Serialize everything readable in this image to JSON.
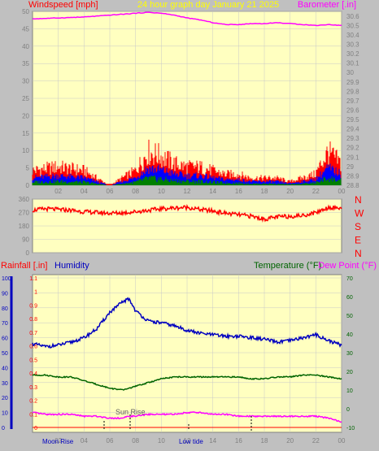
{
  "colors": {
    "background": "#c0c0c0",
    "plot_area": "#ffffc0",
    "grid": "#c8c8c8",
    "windspeed": "#ff0000",
    "wind_mid": "#0000ff",
    "wind_low": "#008000",
    "barometer": "#ff00ff",
    "direction": "#ff0000",
    "humidity": "#0000c0",
    "temperature": "#006400",
    "dewpoint": "#ff00ff",
    "rainfall": "#ff0000",
    "title": "#ffff00",
    "tick_text": "#808080"
  },
  "labels": {
    "windspeed": "Windspeed [mph]",
    "title": "24 hour graph day   January 21 2025",
    "barometer": "Barometer [.in]",
    "rainfall": "Rainfall [.in]",
    "humidity": "Humidity",
    "temperature": "Temperature (°F)",
    "dewpoint": "Dew Point (°F)",
    "sun_rise": "Sun Rise",
    "moon_rise": "Moon Rise",
    "low_tide": "Low tide"
  },
  "chart_data": [
    {
      "type": "area",
      "title": "24 hour graph day   January 21 2025",
      "x_ticks": [
        "02",
        "04",
        "06",
        "08",
        "10",
        "12",
        "14",
        "16",
        "18",
        "20",
        "22",
        "00"
      ],
      "y_left": {
        "label": "Windspeed [mph]",
        "ticks": [
          0,
          5,
          10,
          15,
          20,
          25,
          30,
          35,
          40,
          45,
          50
        ],
        "ylim": [
          0,
          50
        ]
      },
      "y_right": {
        "label": "Barometer [.in]",
        "ticks": [
          "28.8",
          "28.9",
          "29",
          "29.1",
          "29.2",
          "29.3",
          "29.4",
          "29.5",
          "29.6",
          "29.7",
          "29.8",
          "29.9",
          "30",
          "30.1",
          "30.2",
          "30.3",
          "30.4",
          "30.5",
          "30.6"
        ],
        "ylim": [
          28.8,
          30.65
        ]
      },
      "x_hours": [
        0,
        2,
        4,
        6,
        8,
        9,
        10,
        11,
        12,
        13,
        14,
        15,
        16,
        17,
        18,
        19,
        20,
        21,
        22,
        23,
        24
      ],
      "series": [
        {
          "name": "Windspeed [mph]",
          "values": [
            4,
            5,
            4,
            0,
            4,
            9,
            8,
            6,
            5,
            5,
            4,
            3,
            3,
            2,
            2,
            2,
            1,
            2,
            3,
            9,
            6
          ]
        },
        {
          "name": "Barometer [.in]",
          "values": [
            30.57,
            30.58,
            30.59,
            30.61,
            30.63,
            30.64,
            30.63,
            30.61,
            30.58,
            30.56,
            30.53,
            30.51,
            30.51,
            30.52,
            30.52,
            30.53,
            30.52,
            30.51,
            30.5,
            30.51,
            30.5
          ]
        }
      ]
    },
    {
      "type": "scatter",
      "title": "",
      "y_left": {
        "ticks": [
          0,
          90,
          180,
          270,
          360
        ],
        "ylim": [
          0,
          360
        ]
      },
      "y_right": {
        "ticks": [
          "N",
          "W",
          "S",
          "E",
          "N"
        ]
      },
      "x_hours": [
        0,
        1,
        2,
        3,
        4,
        5,
        6,
        7,
        8,
        9,
        10,
        11,
        12,
        13,
        14,
        15,
        16,
        17,
        18,
        19,
        20,
        21,
        22,
        23,
        24
      ],
      "series": [
        {
          "name": "Wind Direction",
          "values": [
            285,
            295,
            290,
            285,
            275,
            270,
            265,
            268,
            275,
            285,
            295,
            300,
            305,
            290,
            280,
            265,
            255,
            245,
            225,
            240,
            245,
            250,
            270,
            305,
            300
          ]
        }
      ]
    },
    {
      "type": "line",
      "title": "",
      "x_ticks": [
        "02",
        "04",
        "06",
        "08",
        "10",
        "12",
        "14",
        "16",
        "18",
        "20",
        "22",
        "00"
      ],
      "y_left_outer": {
        "label": "Humidity",
        "ticks": [
          0,
          10,
          20,
          30,
          40,
          50,
          60,
          70,
          80,
          90,
          100
        ],
        "ylim": [
          0,
          100
        ]
      },
      "y_left_inner": {
        "label": "Rainfall [.in]",
        "ticks": [
          "0",
          "0.1",
          "0.2",
          "0.3",
          "0.4",
          "0.5",
          "0.6",
          "0.7",
          "0.8",
          "0.9",
          "1",
          "1.1"
        ],
        "ylim": [
          0,
          1.1
        ]
      },
      "y_right": {
        "label": "Temperature (°F)",
        "ticks": [
          -10,
          0,
          10,
          20,
          30,
          40,
          50,
          60,
          70
        ],
        "ylim": [
          -10,
          70
        ]
      },
      "x_hours": [
        0,
        1,
        2,
        3,
        4,
        5,
        6,
        7,
        7.5,
        8,
        9,
        10,
        11,
        12,
        13,
        14,
        15,
        16,
        17,
        18,
        19,
        20,
        21,
        22,
        23,
        24
      ],
      "series": [
        {
          "name": "Humidity",
          "values": [
            56,
            54,
            55,
            57,
            60,
            66,
            77,
            84,
            86,
            78,
            71,
            70,
            68,
            65,
            63,
            62,
            61,
            61,
            60,
            59,
            57,
            58,
            60,
            62,
            58,
            55
          ]
        },
        {
          "name": "Temperature (°F)",
          "values": [
            18,
            18,
            17,
            17,
            15,
            13,
            11,
            10,
            11,
            12,
            14,
            16,
            17,
            17,
            17,
            17,
            17,
            17,
            16,
            16,
            17,
            17,
            18,
            18,
            17,
            16
          ]
        },
        {
          "name": "Dew Point (°F)",
          "values": [
            -2,
            -3,
            -3,
            -3,
            -4,
            -4,
            -5,
            -5,
            -4,
            -4,
            -3,
            -3,
            -3,
            -2,
            -2,
            -3,
            -3,
            -4,
            -4,
            -4,
            -4,
            -4,
            -4,
            -4,
            -5,
            -7
          ]
        },
        {
          "name": "Rainfall [.in]",
          "values": [
            0,
            0,
            0,
            0,
            0,
            0,
            0,
            0,
            0,
            0,
            0,
            0,
            0,
            0,
            0,
            0,
            0,
            0,
            0,
            0,
            0,
            0,
            0,
            0,
            0,
            0
          ]
        }
      ]
    }
  ]
}
